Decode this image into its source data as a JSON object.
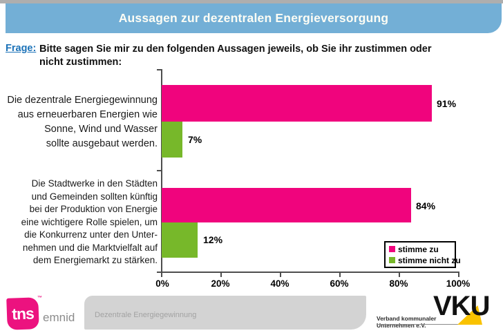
{
  "title": "Aussagen zur dezentralen Energieversorgung",
  "question": {
    "label": "Frage:",
    "text": "Bitte sagen Sie mir zu den folgenden Aussagen jeweils, ob Sie ihr zustimmen oder\nnicht zustimmen:"
  },
  "chart_data": {
    "type": "bar",
    "orientation": "horizontal",
    "categories": [
      "Die dezentrale Energiegewinnung\naus erneuerbaren Energien wie\nSonne, Wind und Wasser\nsollte ausgebaut werden.",
      "Die Stadtwerke in den Städten\nund Gemeinden sollten künftig\nbei der Produktion von Energie\neine wichtigere Rolle spielen, um\ndie Konkurrenz unter den Unter-\nnehmen und die Marktvielfalt auf\ndem Energiemarkt zu stärken."
    ],
    "series": [
      {
        "name": "stimme zu",
        "color": "#f0047d",
        "values": [
          91,
          84
        ]
      },
      {
        "name": "stimme nicht zu",
        "color": "#77b82a",
        "values": [
          7,
          12
        ]
      }
    ],
    "value_labels": {
      "pink1": "91%",
      "green1": "7%",
      "pink2": "84%",
      "green2": "12%"
    },
    "x_ticks": [
      "0%",
      "20%",
      "40%",
      "60%",
      "80%",
      "100%"
    ],
    "xlim": [
      0,
      100
    ],
    "grid": false,
    "legend_position": "inside-bottom-right"
  },
  "footer": {
    "tns": "tns",
    "tm": "™",
    "emnid": "emnid",
    "doc_label": "Dezentrale Energiegewinnung",
    "vku": "VKU",
    "vku_sub": "Verband kommunaler Unternehmen e.V."
  },
  "colors": {
    "title_bar": "#73afd6",
    "frage_blue": "#1b72b8",
    "agree_pink": "#f0047d",
    "disagree_green": "#77b82a",
    "axis": "#4d4d4d"
  }
}
